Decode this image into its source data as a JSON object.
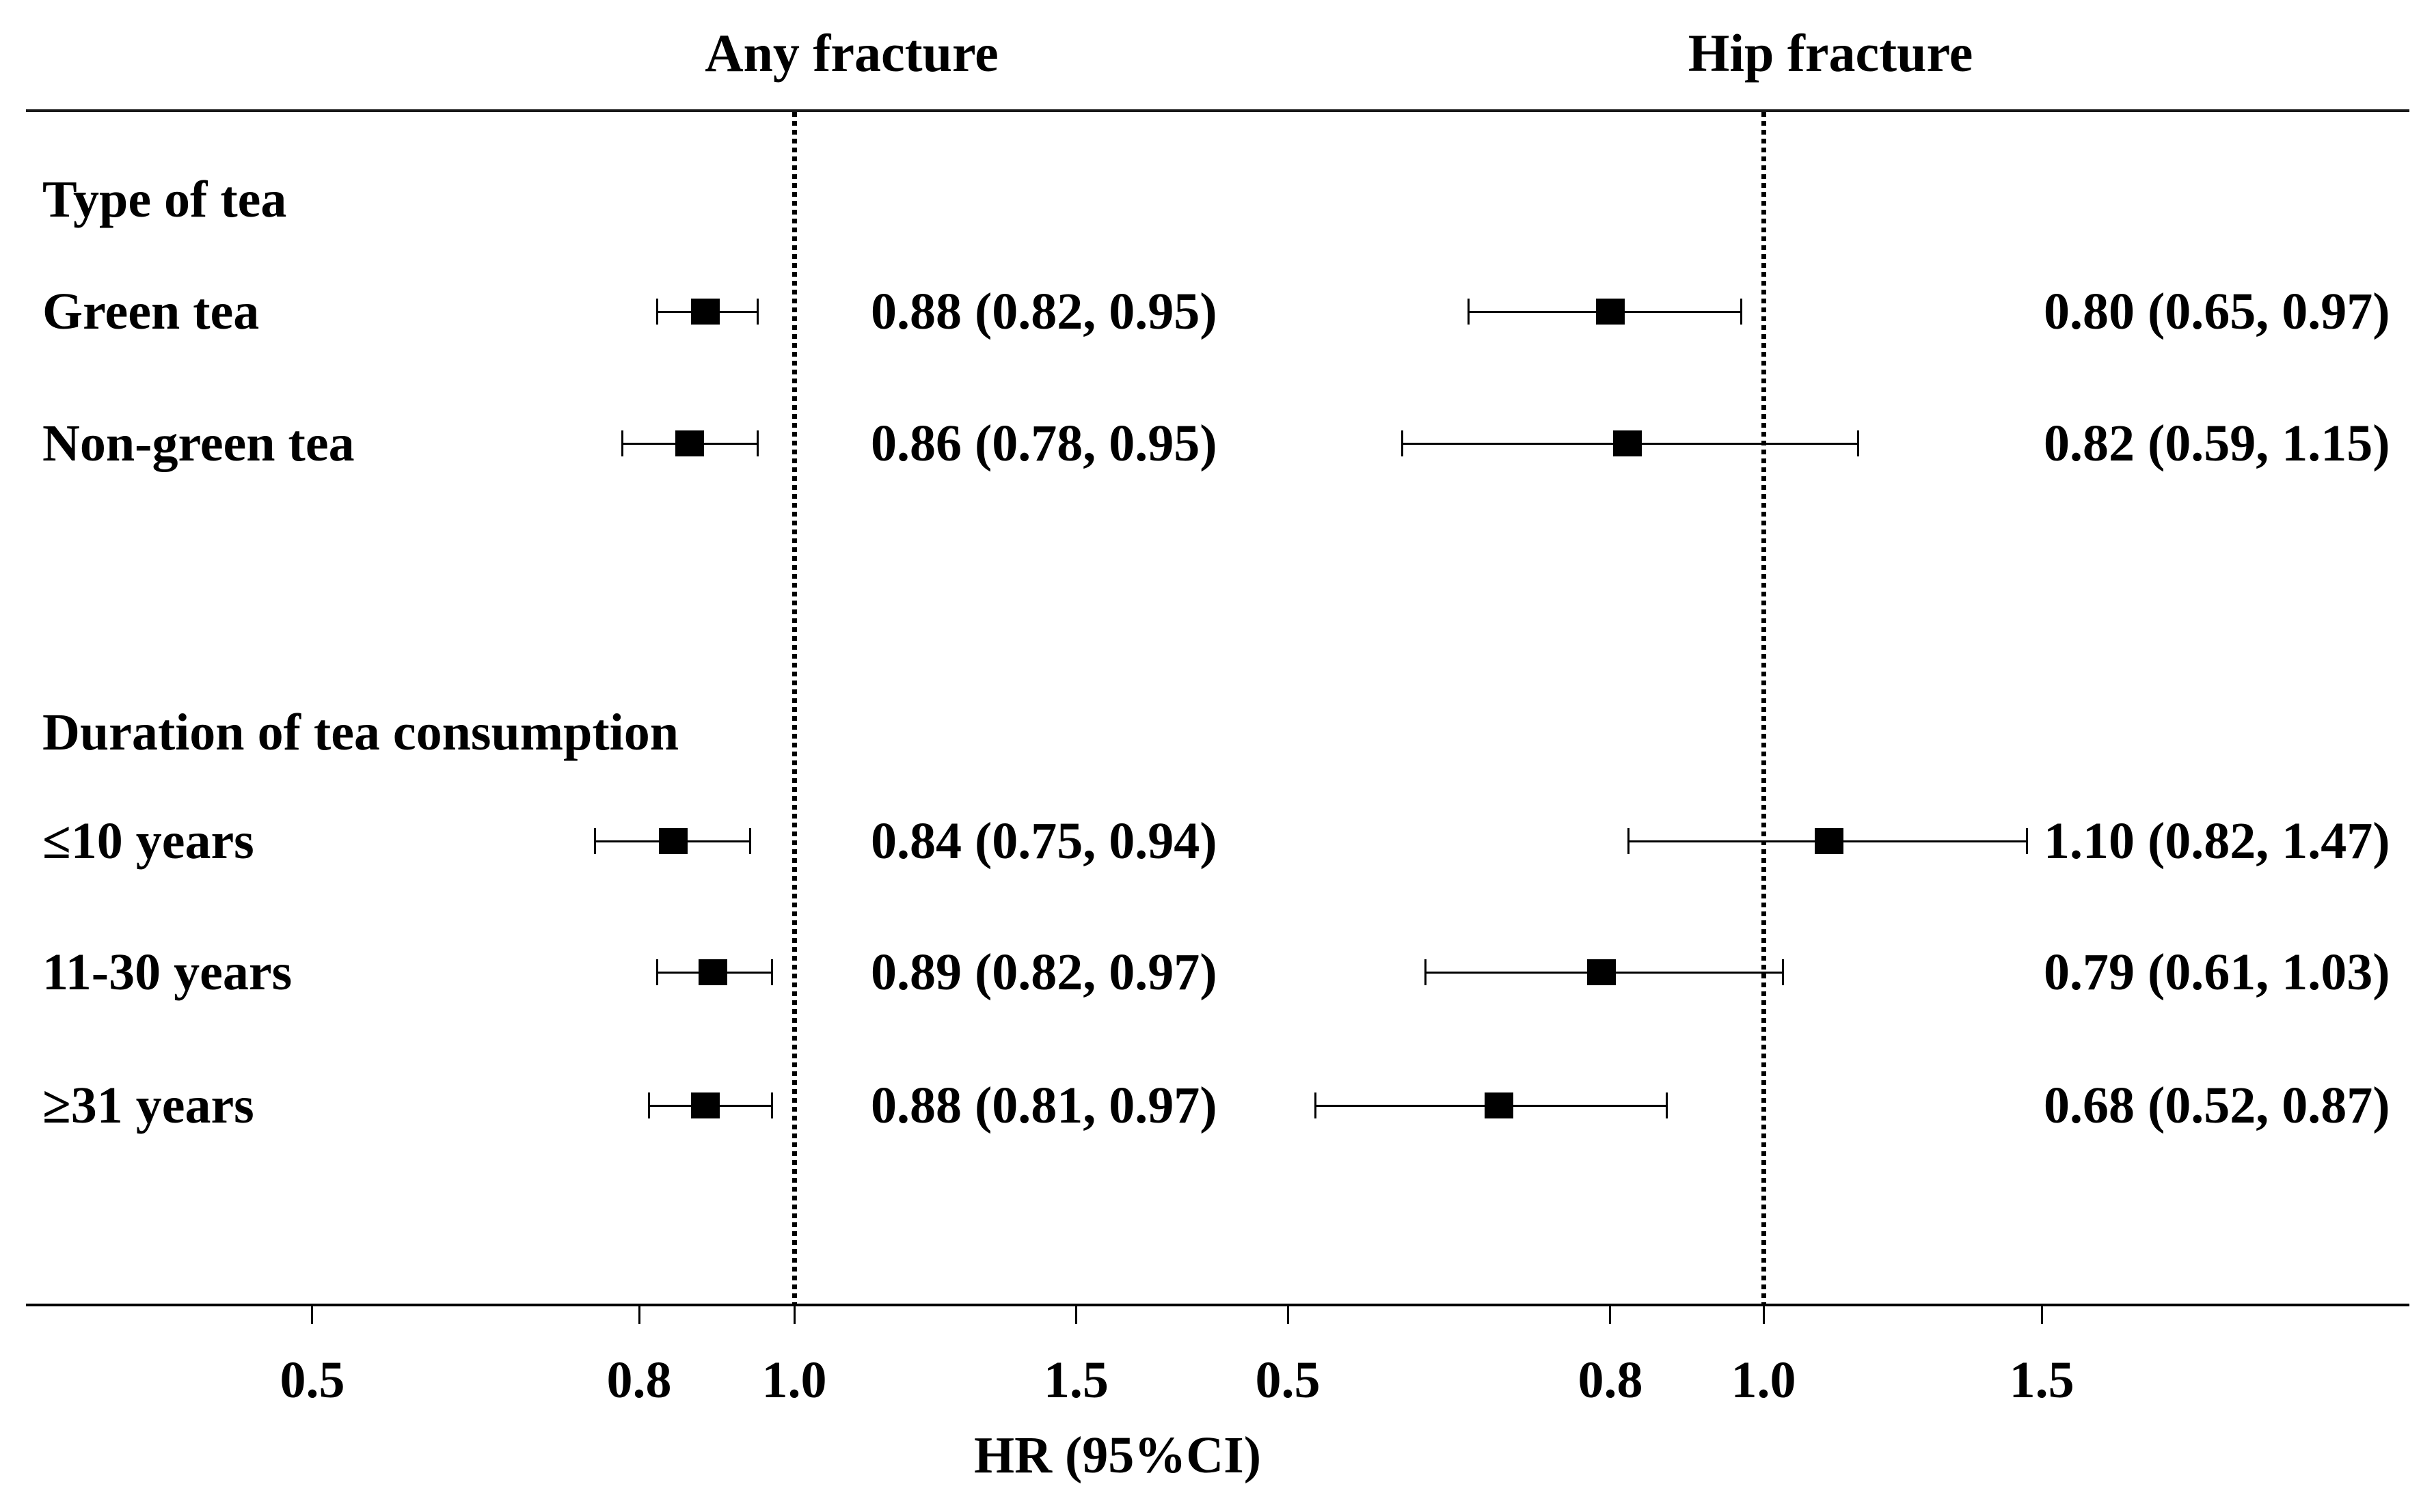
{
  "chart_data": {
    "type": "forest",
    "title": "",
    "xlabel": "HR (95%CI)",
    "x_scale": "log10",
    "x_tick_labels": [
      "0.5",
      "0.8",
      "1.0",
      "1.5"
    ],
    "x_tick_values": [
      0.5,
      0.8,
      1.0,
      1.5
    ],
    "reference_line": 1.0,
    "grid": false,
    "legend_position": "none",
    "marker_shape": "filled-square",
    "panels": [
      {
        "title": "Any fracture"
      },
      {
        "title": "Hip fracture"
      }
    ],
    "groups": [
      {
        "label": "Type of tea",
        "rows": [
          {
            "label": "Green tea",
            "estimates": [
              {
                "panel": "Any fracture",
                "hr": 0.88,
                "ci_low": 0.82,
                "ci_high": 0.95,
                "text": "0.88 (0.82, 0.95)"
              },
              {
                "panel": "Hip fracture",
                "hr": 0.8,
                "ci_low": 0.65,
                "ci_high": 0.97,
                "text": "0.80 (0.65, 0.97)"
              }
            ]
          },
          {
            "label": "Non-green tea",
            "estimates": [
              {
                "panel": "Any fracture",
                "hr": 0.86,
                "ci_low": 0.78,
                "ci_high": 0.95,
                "text": "0.86 (0.78, 0.95)"
              },
              {
                "panel": "Hip fracture",
                "hr": 0.82,
                "ci_low": 0.59,
                "ci_high": 1.15,
                "text": "0.82 (0.59, 1.15)"
              }
            ]
          }
        ]
      },
      {
        "label": "Duration of tea consumption",
        "rows": [
          {
            "label": "≤10 years",
            "estimates": [
              {
                "panel": "Any fracture",
                "hr": 0.84,
                "ci_low": 0.75,
                "ci_high": 0.94,
                "text": "0.84 (0.75, 0.94)"
              },
              {
                "panel": "Hip fracture",
                "hr": 1.1,
                "ci_low": 0.82,
                "ci_high": 1.47,
                "text": "1.10 (0.82, 1.47)"
              }
            ]
          },
          {
            "label": "11-30 years",
            "estimates": [
              {
                "panel": "Any fracture",
                "hr": 0.89,
                "ci_low": 0.82,
                "ci_high": 0.97,
                "text": "0.89 (0.82, 0.97)"
              },
              {
                "panel": "Hip fracture",
                "hr": 0.79,
                "ci_low": 0.61,
                "ci_high": 1.03,
                "text": "0.79 (0.61, 1.03)"
              }
            ]
          },
          {
            "label": "≥31 years",
            "estimates": [
              {
                "panel": "Any fracture",
                "hr": 0.88,
                "ci_low": 0.81,
                "ci_high": 0.97,
                "text": "0.88 (0.81, 0.97)"
              },
              {
                "panel": "Hip fracture",
                "hr": 0.68,
                "ci_low": 0.52,
                "ci_high": 0.87,
                "text": "0.68 (0.52, 0.87)"
              }
            ]
          }
        ]
      }
    ]
  }
}
